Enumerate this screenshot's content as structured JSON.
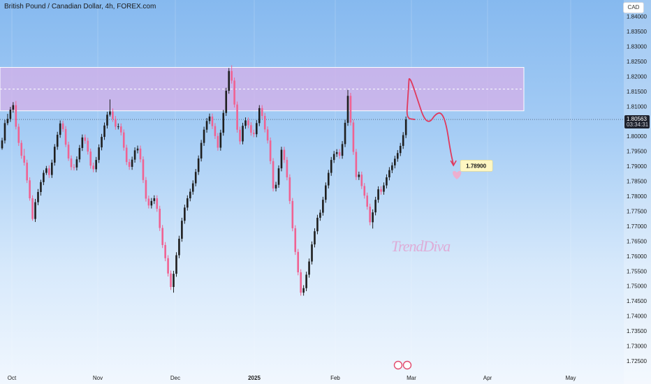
{
  "header": {
    "title": "British Pound / Canadian Dollar, 4h, FOREX.com",
    "currency": "CAD"
  },
  "price": {
    "current": "1.80563",
    "countdown": "03:34:31",
    "target": "1.78900"
  },
  "watermark": "TrendDiva",
  "colors": {
    "up": "#1e1e1e",
    "down": "#f06292",
    "zone": "#d6b0e8",
    "path": "#e0395d"
  },
  "chart_data": {
    "type": "candlestick",
    "title": "British Pound / Canadian Dollar, 4h, FOREX.com",
    "ylim": [
      1.7215,
      1.8455
    ],
    "yticks": [
      1.725,
      1.73,
      1.735,
      1.74,
      1.745,
      1.75,
      1.755,
      1.76,
      1.765,
      1.77,
      1.775,
      1.78,
      1.785,
      1.79,
      1.795,
      1.8,
      1.805,
      1.81,
      1.815,
      1.82,
      1.825,
      1.83,
      1.835,
      1.84
    ],
    "ytick_labels": [
      "1.72500",
      "1.73000",
      "1.73500",
      "1.74000",
      "1.74500",
      "1.75000",
      "1.75500",
      "1.76000",
      "1.76500",
      "1.77000",
      "1.77500",
      "1.78000",
      "1.78500",
      "1.79000",
      "1.79500",
      "1.80000",
      "1.80500",
      "1.81000",
      "1.81500",
      "1.82000",
      "1.82500",
      "1.83000",
      "1.83500",
      "1.84000"
    ],
    "xticks": [
      "Oct",
      "Nov",
      "Dec",
      "2025",
      "Feb",
      "Mar",
      "Apr",
      "May"
    ],
    "last_price": 1.80563,
    "target_price": 1.789,
    "resistance_zone": [
      1.8085,
      1.823
    ],
    "price_path": [
      [
        1.45,
        1.80563
      ],
      [
        0.1,
        1.806
      ],
      [
        0.3,
        1.812
      ],
      [
        0.5,
        1.8185
      ],
      [
        0.55,
        1.8195
      ],
      [
        1.0,
        1.818
      ],
      [
        2.0,
        1.812
      ],
      [
        3.0,
        1.806
      ],
      [
        4.0,
        1.8045
      ],
      [
        5.0,
        1.8075
      ],
      [
        6.0,
        1.808
      ],
      [
        6.8,
        1.804
      ],
      [
        7.5,
        1.795
      ],
      [
        8.0,
        1.7905
      ]
    ],
    "candles": [
      [
        1.796,
        1.7986,
        1.7955,
        1.7995
      ],
      [
        1.7986,
        1.8044,
        1.7976,
        1.8055
      ],
      [
        1.8044,
        1.8058,
        1.8037,
        1.8075
      ],
      [
        1.8058,
        1.8089,
        1.8048,
        1.8098
      ],
      [
        1.8089,
        1.8104,
        1.8079,
        1.8114
      ],
      [
        1.8104,
        1.8032,
        1.8023,
        1.8118
      ],
      [
        1.8032,
        1.7978,
        1.7968,
        1.8042
      ],
      [
        1.7978,
        1.7935,
        1.7925,
        1.7987
      ],
      [
        1.7935,
        1.7912,
        1.7902,
        1.7958
      ],
      [
        1.7912,
        1.7853,
        1.7844,
        1.7922
      ],
      [
        1.7853,
        1.7793,
        1.7785,
        1.7863
      ],
      [
        1.7793,
        1.7724,
        1.7718,
        1.7803
      ],
      [
        1.7724,
        1.778,
        1.7714,
        1.7791
      ],
      [
        1.778,
        1.7814,
        1.777,
        1.7824
      ],
      [
        1.7814,
        1.7847,
        1.7802,
        1.7855
      ],
      [
        1.7847,
        1.7878,
        1.7837,
        1.7887
      ],
      [
        1.7878,
        1.7893,
        1.7871,
        1.7901
      ],
      [
        1.7893,
        1.7871,
        1.7861,
        1.7903
      ],
      [
        1.7871,
        1.7912,
        1.7861,
        1.7922
      ],
      [
        1.7912,
        1.7965,
        1.7902,
        1.7974
      ],
      [
        1.7965,
        1.8005,
        1.7955,
        1.8015
      ],
      [
        1.8005,
        1.8043,
        1.7995,
        1.8053
      ],
      [
        1.8043,
        1.8024,
        1.8015,
        1.8052
      ],
      [
        1.8024,
        1.7972,
        1.7964,
        1.8034
      ],
      [
        1.7972,
        1.7926,
        1.7918,
        1.7982
      ],
      [
        1.7926,
        1.7897,
        1.7887,
        1.7936
      ],
      [
        1.7897,
        1.7896,
        1.7886,
        1.7907
      ],
      [
        1.7896,
        1.7923,
        1.7886,
        1.7933
      ],
      [
        1.7923,
        1.7961,
        1.7913,
        1.7971
      ],
      [
        1.7961,
        1.7996,
        1.7951,
        1.8006
      ],
      [
        1.7996,
        1.7985,
        1.7975,
        1.8006
      ],
      [
        1.7985,
        1.7949,
        1.7939,
        1.7995
      ],
      [
        1.7949,
        1.7902,
        1.7892,
        1.7959
      ],
      [
        1.7902,
        1.789,
        1.788,
        1.7912
      ],
      [
        1.789,
        1.7921,
        1.788,
        1.7931
      ],
      [
        1.7921,
        1.7963,
        1.7911,
        1.7973
      ],
      [
        1.7963,
        1.7998,
        1.7953,
        1.8008
      ],
      [
        1.7998,
        1.8036,
        1.7988,
        1.8046
      ],
      [
        1.8036,
        1.8072,
        1.8026,
        1.8082
      ],
      [
        1.8072,
        1.8083,
        1.8066,
        1.8123
      ],
      [
        1.8083,
        1.8058,
        1.8048,
        1.8093
      ],
      [
        1.8058,
        1.8032,
        1.8022,
        1.8068
      ],
      [
        1.8032,
        1.8033,
        1.8023,
        1.8043
      ],
      [
        1.8033,
        1.8013,
        1.8003,
        1.8043
      ],
      [
        1.8013,
        1.7962,
        1.7952,
        1.8023
      ],
      [
        1.7962,
        1.7914,
        1.7904,
        1.7972
      ],
      [
        1.7914,
        1.7898,
        1.7888,
        1.7924
      ],
      [
        1.7898,
        1.7922,
        1.7888,
        1.7932
      ],
      [
        1.7922,
        1.7953,
        1.7912,
        1.7963
      ],
      [
        1.7953,
        1.7959,
        1.7943,
        1.7969
      ],
      [
        1.7959,
        1.7923,
        1.7913,
        1.7969
      ],
      [
        1.7923,
        1.7854,
        1.7844,
        1.7933
      ],
      [
        1.7854,
        1.7792,
        1.7782,
        1.7864
      ],
      [
        1.7792,
        1.7769,
        1.7759,
        1.7802
      ],
      [
        1.7769,
        1.7784,
        1.7759,
        1.7794
      ],
      [
        1.7784,
        1.7793,
        1.7774,
        1.7803
      ],
      [
        1.7793,
        1.7758,
        1.7748,
        1.7803
      ],
      [
        1.7758,
        1.7694,
        1.7684,
        1.7768
      ],
      [
        1.7694,
        1.7637,
        1.7627,
        1.7704
      ],
      [
        1.7637,
        1.7593,
        1.7583,
        1.7647
      ],
      [
        1.7593,
        1.7542,
        1.7532,
        1.7603
      ],
      [
        1.7542,
        1.7497,
        1.7487,
        1.7552
      ],
      [
        1.7497,
        1.7541,
        1.7478,
        1.7551
      ],
      [
        1.7541,
        1.7603,
        1.7531,
        1.7613
      ],
      [
        1.7603,
        1.7658,
        1.7593,
        1.7668
      ],
      [
        1.7658,
        1.7718,
        1.7648,
        1.7728
      ],
      [
        1.7718,
        1.7762,
        1.7708,
        1.7772
      ],
      [
        1.7762,
        1.7793,
        1.7752,
        1.7803
      ],
      [
        1.7793,
        1.7815,
        1.7783,
        1.7825
      ],
      [
        1.7815,
        1.7843,
        1.7805,
        1.7853
      ],
      [
        1.7843,
        1.7881,
        1.7833,
        1.7891
      ],
      [
        1.7881,
        1.7926,
        1.7871,
        1.7936
      ],
      [
        1.7926,
        1.7978,
        1.7916,
        1.7988
      ],
      [
        1.7978,
        1.8022,
        1.7968,
        1.8032
      ],
      [
        1.8022,
        1.8051,
        1.8012,
        1.8061
      ],
      [
        1.8051,
        1.8066,
        1.8041,
        1.8076
      ],
      [
        1.8066,
        1.8034,
        1.8024,
        1.8076
      ],
      [
        1.8034,
        1.8001,
        1.7991,
        1.8044
      ],
      [
        1.8001,
        1.7962,
        1.7952,
        1.8011
      ],
      [
        1.7962,
        1.8012,
        1.7952,
        1.8022
      ],
      [
        1.8012,
        1.8078,
        1.8002,
        1.8088
      ],
      [
        1.8078,
        1.8152,
        1.8068,
        1.8162
      ],
      [
        1.8152,
        1.8218,
        1.8142,
        1.8228
      ],
      [
        1.8218,
        1.8186,
        1.8176,
        1.8237
      ],
      [
        1.8186,
        1.8106,
        1.8096,
        1.8196
      ],
      [
        1.8106,
        1.8022,
        1.8012,
        1.8116
      ],
      [
        1.8022,
        1.7983,
        1.7973,
        1.8032
      ],
      [
        1.7983,
        1.8035,
        1.7973,
        1.8045
      ],
      [
        1.8035,
        1.8053,
        1.8025,
        1.8063
      ],
      [
        1.8053,
        1.8037,
        1.8027,
        1.8063
      ],
      [
        1.8037,
        1.8012,
        1.8002,
        1.8047
      ],
      [
        1.8012,
        1.8007,
        1.7997,
        1.8022
      ],
      [
        1.8007,
        1.8044,
        1.7997,
        1.8054
      ],
      [
        1.8044,
        1.8094,
        1.8034,
        1.8104
      ],
      [
        1.8094,
        1.8068,
        1.8058,
        1.8104
      ],
      [
        1.8068,
        1.8023,
        1.8013,
        1.8078
      ],
      [
        1.8023,
        1.7986,
        1.7976,
        1.8033
      ],
      [
        1.7986,
        1.7917,
        1.7907,
        1.7996
      ],
      [
        1.7917,
        1.7826,
        1.7816,
        1.7927
      ],
      [
        1.7826,
        1.7838,
        1.7816,
        1.7848
      ],
      [
        1.7838,
        1.7893,
        1.7828,
        1.7903
      ],
      [
        1.7893,
        1.7955,
        1.7883,
        1.7965
      ],
      [
        1.7955,
        1.7921,
        1.7911,
        1.7965
      ],
      [
        1.7921,
        1.7863,
        1.7853,
        1.7931
      ],
      [
        1.7863,
        1.7784,
        1.7774,
        1.7873
      ],
      [
        1.7784,
        1.7693,
        1.7683,
        1.7794
      ],
      [
        1.7693,
        1.7614,
        1.7604,
        1.7703
      ],
      [
        1.7614,
        1.7546,
        1.7536,
        1.7624
      ],
      [
        1.7546,
        1.7478,
        1.7468,
        1.7556
      ],
      [
        1.7478,
        1.7493,
        1.7468,
        1.7503
      ],
      [
        1.7493,
        1.7538,
        1.7483,
        1.7548
      ],
      [
        1.7538,
        1.7582,
        1.7528,
        1.7592
      ],
      [
        1.7582,
        1.7639,
        1.7572,
        1.7649
      ],
      [
        1.7639,
        1.7683,
        1.7629,
        1.7693
      ],
      [
        1.7683,
        1.7728,
        1.7673,
        1.7738
      ],
      [
        1.7728,
        1.7745,
        1.7718,
        1.7755
      ],
      [
        1.7745,
        1.7788,
        1.7735,
        1.7798
      ],
      [
        1.7788,
        1.7836,
        1.7778,
        1.7846
      ],
      [
        1.7836,
        1.7878,
        1.7826,
        1.7888
      ],
      [
        1.7878,
        1.7921,
        1.7868,
        1.7931
      ],
      [
        1.7921,
        1.7941,
        1.7911,
        1.7951
      ],
      [
        1.7941,
        1.7947,
        1.7931,
        1.7957
      ],
      [
        1.7947,
        1.7935,
        1.7925,
        1.7957
      ],
      [
        1.7935,
        1.7974,
        1.7925,
        1.7984
      ],
      [
        1.7974,
        1.8045,
        1.7964,
        1.8055
      ],
      [
        1.8045,
        1.8135,
        1.8035,
        1.8155
      ],
      [
        1.8135,
        1.8046,
        1.8036,
        1.8145
      ],
      [
        1.8046,
        1.7948,
        1.7938,
        1.8056
      ],
      [
        1.7948,
        1.7864,
        1.7854,
        1.7958
      ],
      [
        1.7864,
        1.7872,
        1.7854,
        1.7882
      ],
      [
        1.7872,
        1.7834,
        1.7824,
        1.7882
      ],
      [
        1.7834,
        1.7802,
        1.7792,
        1.7844
      ],
      [
        1.7802,
        1.7765,
        1.7755,
        1.7812
      ],
      [
        1.7765,
        1.7713,
        1.7703,
        1.7775
      ],
      [
        1.7713,
        1.7746,
        1.7692,
        1.7756
      ],
      [
        1.7746,
        1.7788,
        1.7736,
        1.7798
      ],
      [
        1.7788,
        1.7823,
        1.7778,
        1.7833
      ],
      [
        1.7823,
        1.7815,
        1.7805,
        1.7833
      ],
      [
        1.7815,
        1.7836,
        1.7805,
        1.7846
      ],
      [
        1.7836,
        1.7863,
        1.7826,
        1.7873
      ],
      [
        1.7863,
        1.7887,
        1.7853,
        1.7897
      ],
      [
        1.7887,
        1.7903,
        1.7877,
        1.7913
      ],
      [
        1.7903,
        1.7925,
        1.7893,
        1.7935
      ],
      [
        1.7925,
        1.7944,
        1.7915,
        1.7954
      ],
      [
        1.7944,
        1.7968,
        1.7934,
        1.7978
      ],
      [
        1.7968,
        1.8004,
        1.7958,
        1.8014
      ],
      [
        1.8004,
        1.8056,
        1.7994,
        1.8066
      ]
    ]
  }
}
